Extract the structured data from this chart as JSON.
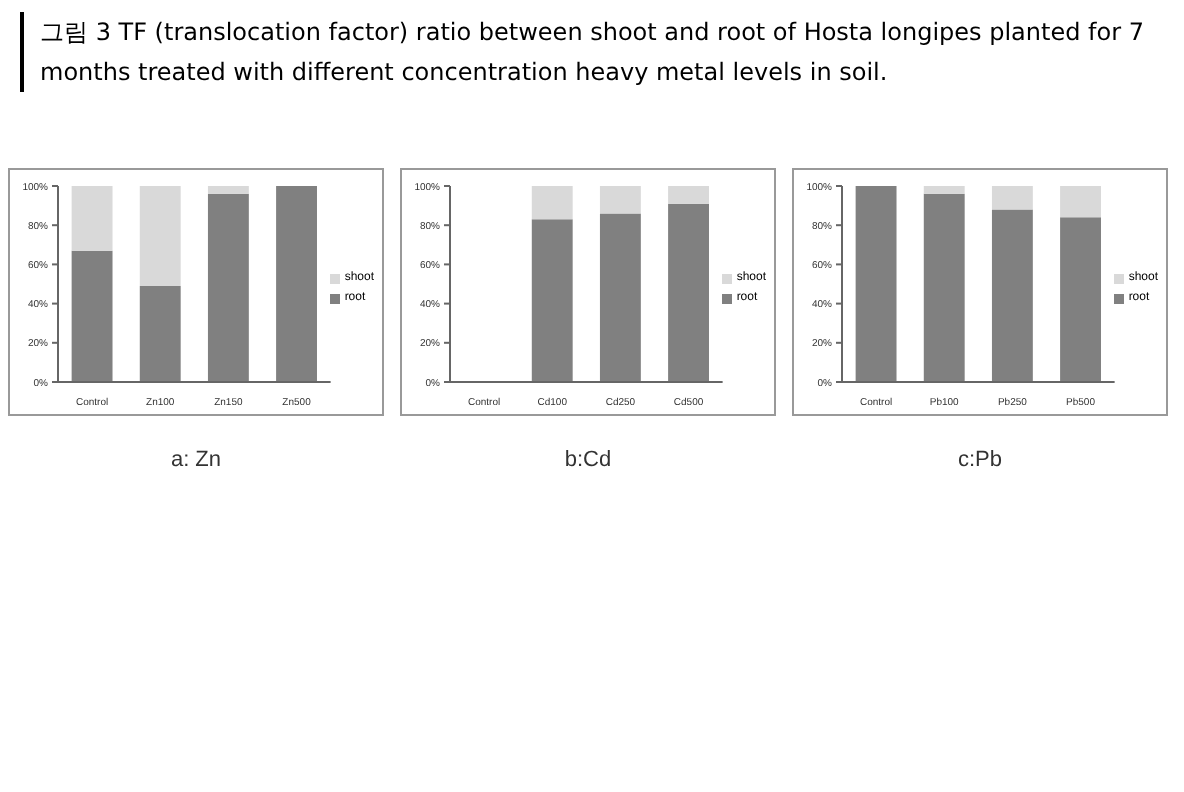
{
  "chart_data": [
    {
      "type": "bar",
      "title": "그림 3  TF (translocation factor) ratio between shoot and root of Hosta longipes planted for 7 months treated with different concentration heavy metal levels in soil.",
      "xlabel": "a: Zn",
      "categories": [
        "Control",
        "Zn100",
        "Zn150",
        "Zn500"
      ],
      "stacked": true,
      "series": [
        {
          "name": "root",
          "color": "#808080",
          "values": [
            67,
            49,
            96,
            100
          ]
        },
        {
          "name": "shoot",
          "color": "#d9d9d9",
          "values": [
            33,
            51,
            4,
            0
          ]
        }
      ],
      "ylim": [
        0,
        100
      ],
      "yticks": [
        {
          "value": 0,
          "label": "0%"
        },
        {
          "value": 20,
          "label": "20%"
        },
        {
          "value": 40,
          "label": "40%"
        },
        {
          "value": 60,
          "label": "60%"
        },
        {
          "value": 80,
          "label": "80%"
        },
        {
          "value": 100,
          "label": "100%"
        }
      ],
      "legend": "right"
    },
    {
      "type": "bar",
      "xlabel": "b:Cd",
      "categories": [
        "Control",
        "Cd100",
        "Cd250",
        "Cd500"
      ],
      "stacked": true,
      "series": [
        {
          "name": "root",
          "color": "#808080",
          "values": [
            0,
            83,
            86,
            91
          ]
        },
        {
          "name": "shoot",
          "color": "#d9d9d9",
          "values": [
            0,
            17,
            14,
            9
          ]
        }
      ],
      "ylim": [
        0,
        100
      ],
      "yticks": [
        {
          "value": 0,
          "label": "0%"
        },
        {
          "value": 20,
          "label": "20%"
        },
        {
          "value": 40,
          "label": "40%"
        },
        {
          "value": 60,
          "label": "60%"
        },
        {
          "value": 80,
          "label": "80%"
        },
        {
          "value": 100,
          "label": "100%"
        }
      ],
      "legend": "right"
    },
    {
      "type": "bar",
      "xlabel": "c:Pb",
      "categories": [
        "Control",
        "Pb100",
        "Pb250",
        "Pb500"
      ],
      "stacked": true,
      "series": [
        {
          "name": "root",
          "color": "#808080",
          "values": [
            100,
            96,
            88,
            84
          ]
        },
        {
          "name": "shoot",
          "color": "#d9d9d9",
          "values": [
            0,
            4,
            12,
            16
          ]
        }
      ],
      "ylim": [
        0,
        100
      ],
      "yticks": [
        {
          "value": 0,
          "label": "0%"
        },
        {
          "value": 20,
          "label": "20%"
        },
        {
          "value": 40,
          "label": "40%"
        },
        {
          "value": 60,
          "label": "60%"
        },
        {
          "value": 80,
          "label": "80%"
        },
        {
          "value": 100,
          "label": "100%"
        }
      ],
      "legend": "right"
    }
  ]
}
